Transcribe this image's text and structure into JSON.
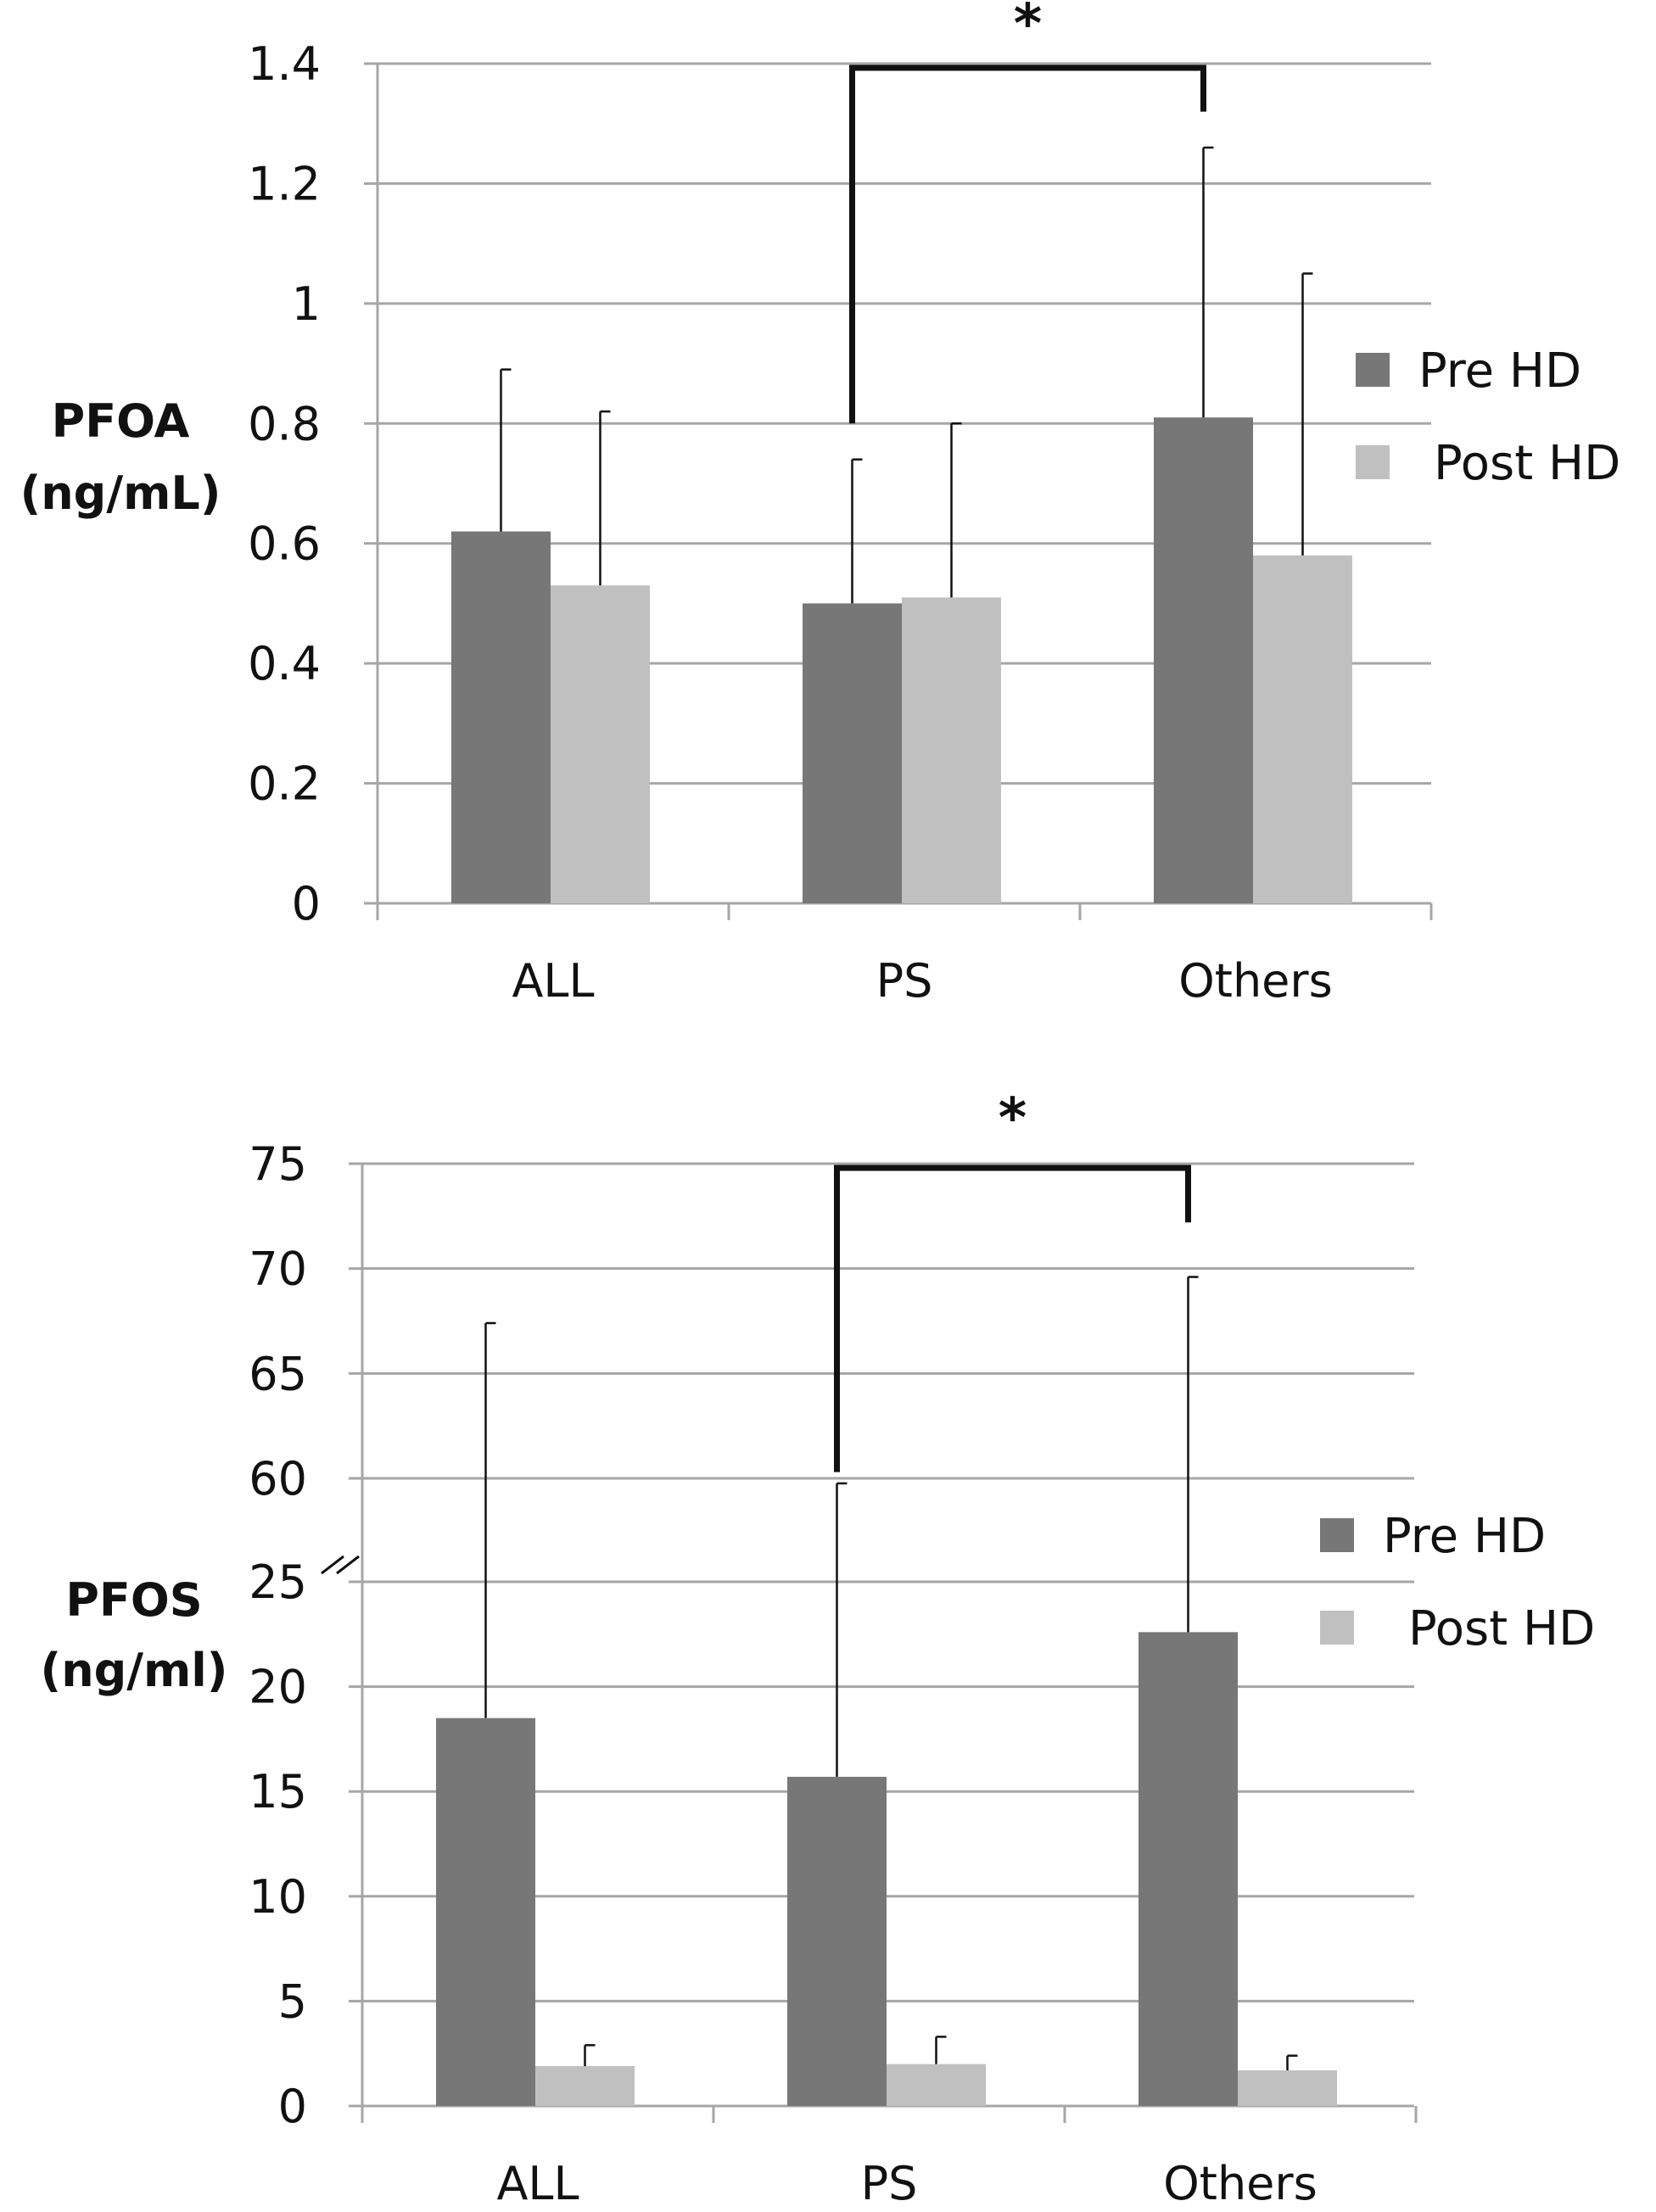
{
  "colors": {
    "pre": "#777777",
    "post": "#c0c0c0",
    "grid": "#a6a6a6",
    "ink": "#111111"
  },
  "chart_data": [
    {
      "type": "bar",
      "title": "",
      "xlabel": "",
      "ylabel": "PFOA\n(ng/mL)",
      "ylabel_lines": [
        "PFOA",
        "(ng/mL)"
      ],
      "categories": [
        "ALL",
        "PS",
        "Others"
      ],
      "ylim": [
        0,
        1.4
      ],
      "yticks": [
        0,
        0.2,
        0.4,
        0.6,
        0.8,
        1,
        1.2,
        1.4
      ],
      "ytick_labels": [
        "0",
        "0.2",
        "0.4",
        "0.6",
        "0.8",
        "1",
        "1.2",
        "1.4"
      ],
      "series": [
        {
          "name": "Pre HD",
          "values": [
            0.62,
            0.5,
            0.81
          ],
          "error_upper": [
            0.89,
            0.74,
            1.26
          ]
        },
        {
          "name": "Post HD",
          "values": [
            0.53,
            0.51,
            0.58
          ],
          "error_upper": [
            0.82,
            0.8,
            1.05
          ]
        }
      ],
      "significance": {
        "label": "*",
        "from_category": "PS",
        "to_category": "Others",
        "bracket_bottom_left": 0.8,
        "bracket_bottom_right": 1.32,
        "bracket_top": 1.4
      },
      "legend": {
        "position": "right",
        "entries": [
          "Pre HD",
          "Post HD"
        ]
      }
    },
    {
      "type": "bar",
      "title": "",
      "xlabel": "",
      "ylabel": "PFOS\n(ng/ml)",
      "ylabel_lines": [
        "PFOS",
        "(ng/ml)"
      ],
      "categories": [
        "ALL",
        "PS",
        "Others"
      ],
      "ylim": [
        0,
        75
      ],
      "axis_break": {
        "between": [
          25,
          60
        ],
        "note": "axis break drawn with '//' marks"
      },
      "yticks": [
        0,
        5,
        10,
        15,
        20,
        25,
        60,
        65,
        70,
        75
      ],
      "ytick_labels": [
        "0",
        "5",
        "10",
        "15",
        "20",
        "25",
        "60",
        "65",
        "70",
        "75"
      ],
      "series": [
        {
          "name": "Pre HD",
          "values": [
            18.5,
            15.7,
            22.6
          ],
          "error_upper": [
            67.4,
            58.3,
            69.6
          ]
        },
        {
          "name": "Post HD",
          "values": [
            1.9,
            2.0,
            1.7
          ],
          "error_upper": [
            2.9,
            3.3,
            2.4
          ]
        }
      ],
      "significance": {
        "label": "*",
        "from_category": "PS",
        "to_category": "Others",
        "bracket_bottom_left": 60.3,
        "bracket_bottom_right": 72.2,
        "bracket_top": 75
      },
      "legend": {
        "position": "right",
        "entries": [
          "Pre HD",
          "Post HD"
        ]
      }
    }
  ]
}
